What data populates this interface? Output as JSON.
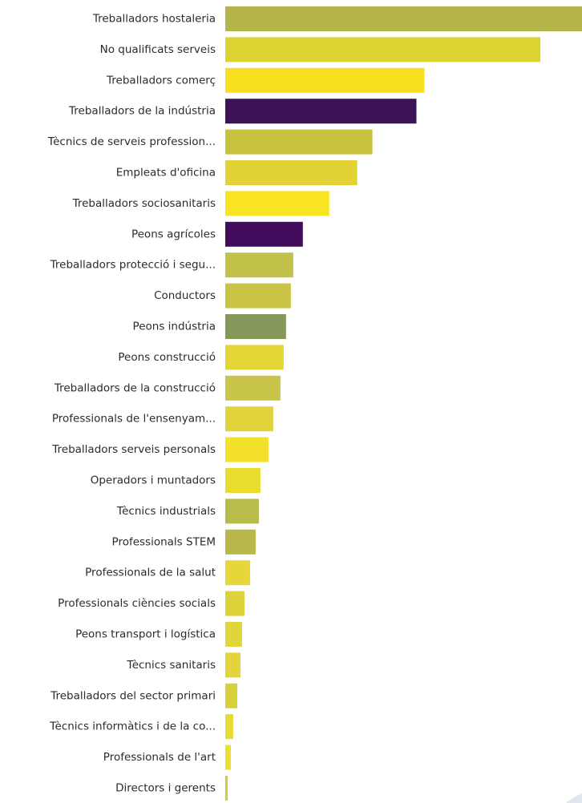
{
  "chart_data": {
    "type": "bar",
    "orientation": "horizontal",
    "title": "",
    "xlabel": "",
    "ylabel": "",
    "grid": false,
    "legend": "none",
    "categories": [
      "Treballadors hostaleria",
      "No qualificats serveis",
      "Treballadors comerç",
      "Treballadors de la indústria",
      "Tècnics de serveis profession...",
      "Empleats d'oficina",
      "Treballadors sociosanitaris",
      "Peons agrícoles",
      "Treballadors protecció i segu...",
      "Conductors",
      "Peons indústria",
      "Peons construcció",
      "Treballadors de la construcció",
      "Professionals de l'ensenyam...",
      "Treballadors serveis personals",
      "Operadors i muntadors",
      "Tècnics industrials",
      "Professionals STEM",
      "Professionals de la salut",
      "Professionals ciències socials",
      "Peons transport i logística",
      "Tècnics sanitaris",
      "Treballadors del sector primari",
      "Tècnics informàtics i de la co...",
      "Professionals de l'art",
      "Directors i gerents"
    ],
    "values": [
      446,
      394,
      249,
      239,
      184,
      165,
      130,
      97,
      85,
      82,
      76,
      73,
      69,
      60,
      54,
      44,
      42,
      38,
      31,
      24,
      21,
      19,
      15,
      10,
      7,
      3
    ],
    "colors": [
      "#b4b54a",
      "#ddd332",
      "#f8e021",
      "#3c1455",
      "#c8c23e",
      "#e2d236",
      "#f9e423",
      "#420a5a",
      "#c2c24a",
      "#c9c444",
      "#85985a",
      "#e3d636",
      "#c9c44a",
      "#e2d23c",
      "#f2e02a",
      "#e8dc2e",
      "#b8bc4a",
      "#b8b84a",
      "#e6d63a",
      "#dcd23a",
      "#e0d63a",
      "#e2d43a",
      "#d6d03a",
      "#e8dc34",
      "#ece034",
      "#d4cc3a"
    ]
  }
}
